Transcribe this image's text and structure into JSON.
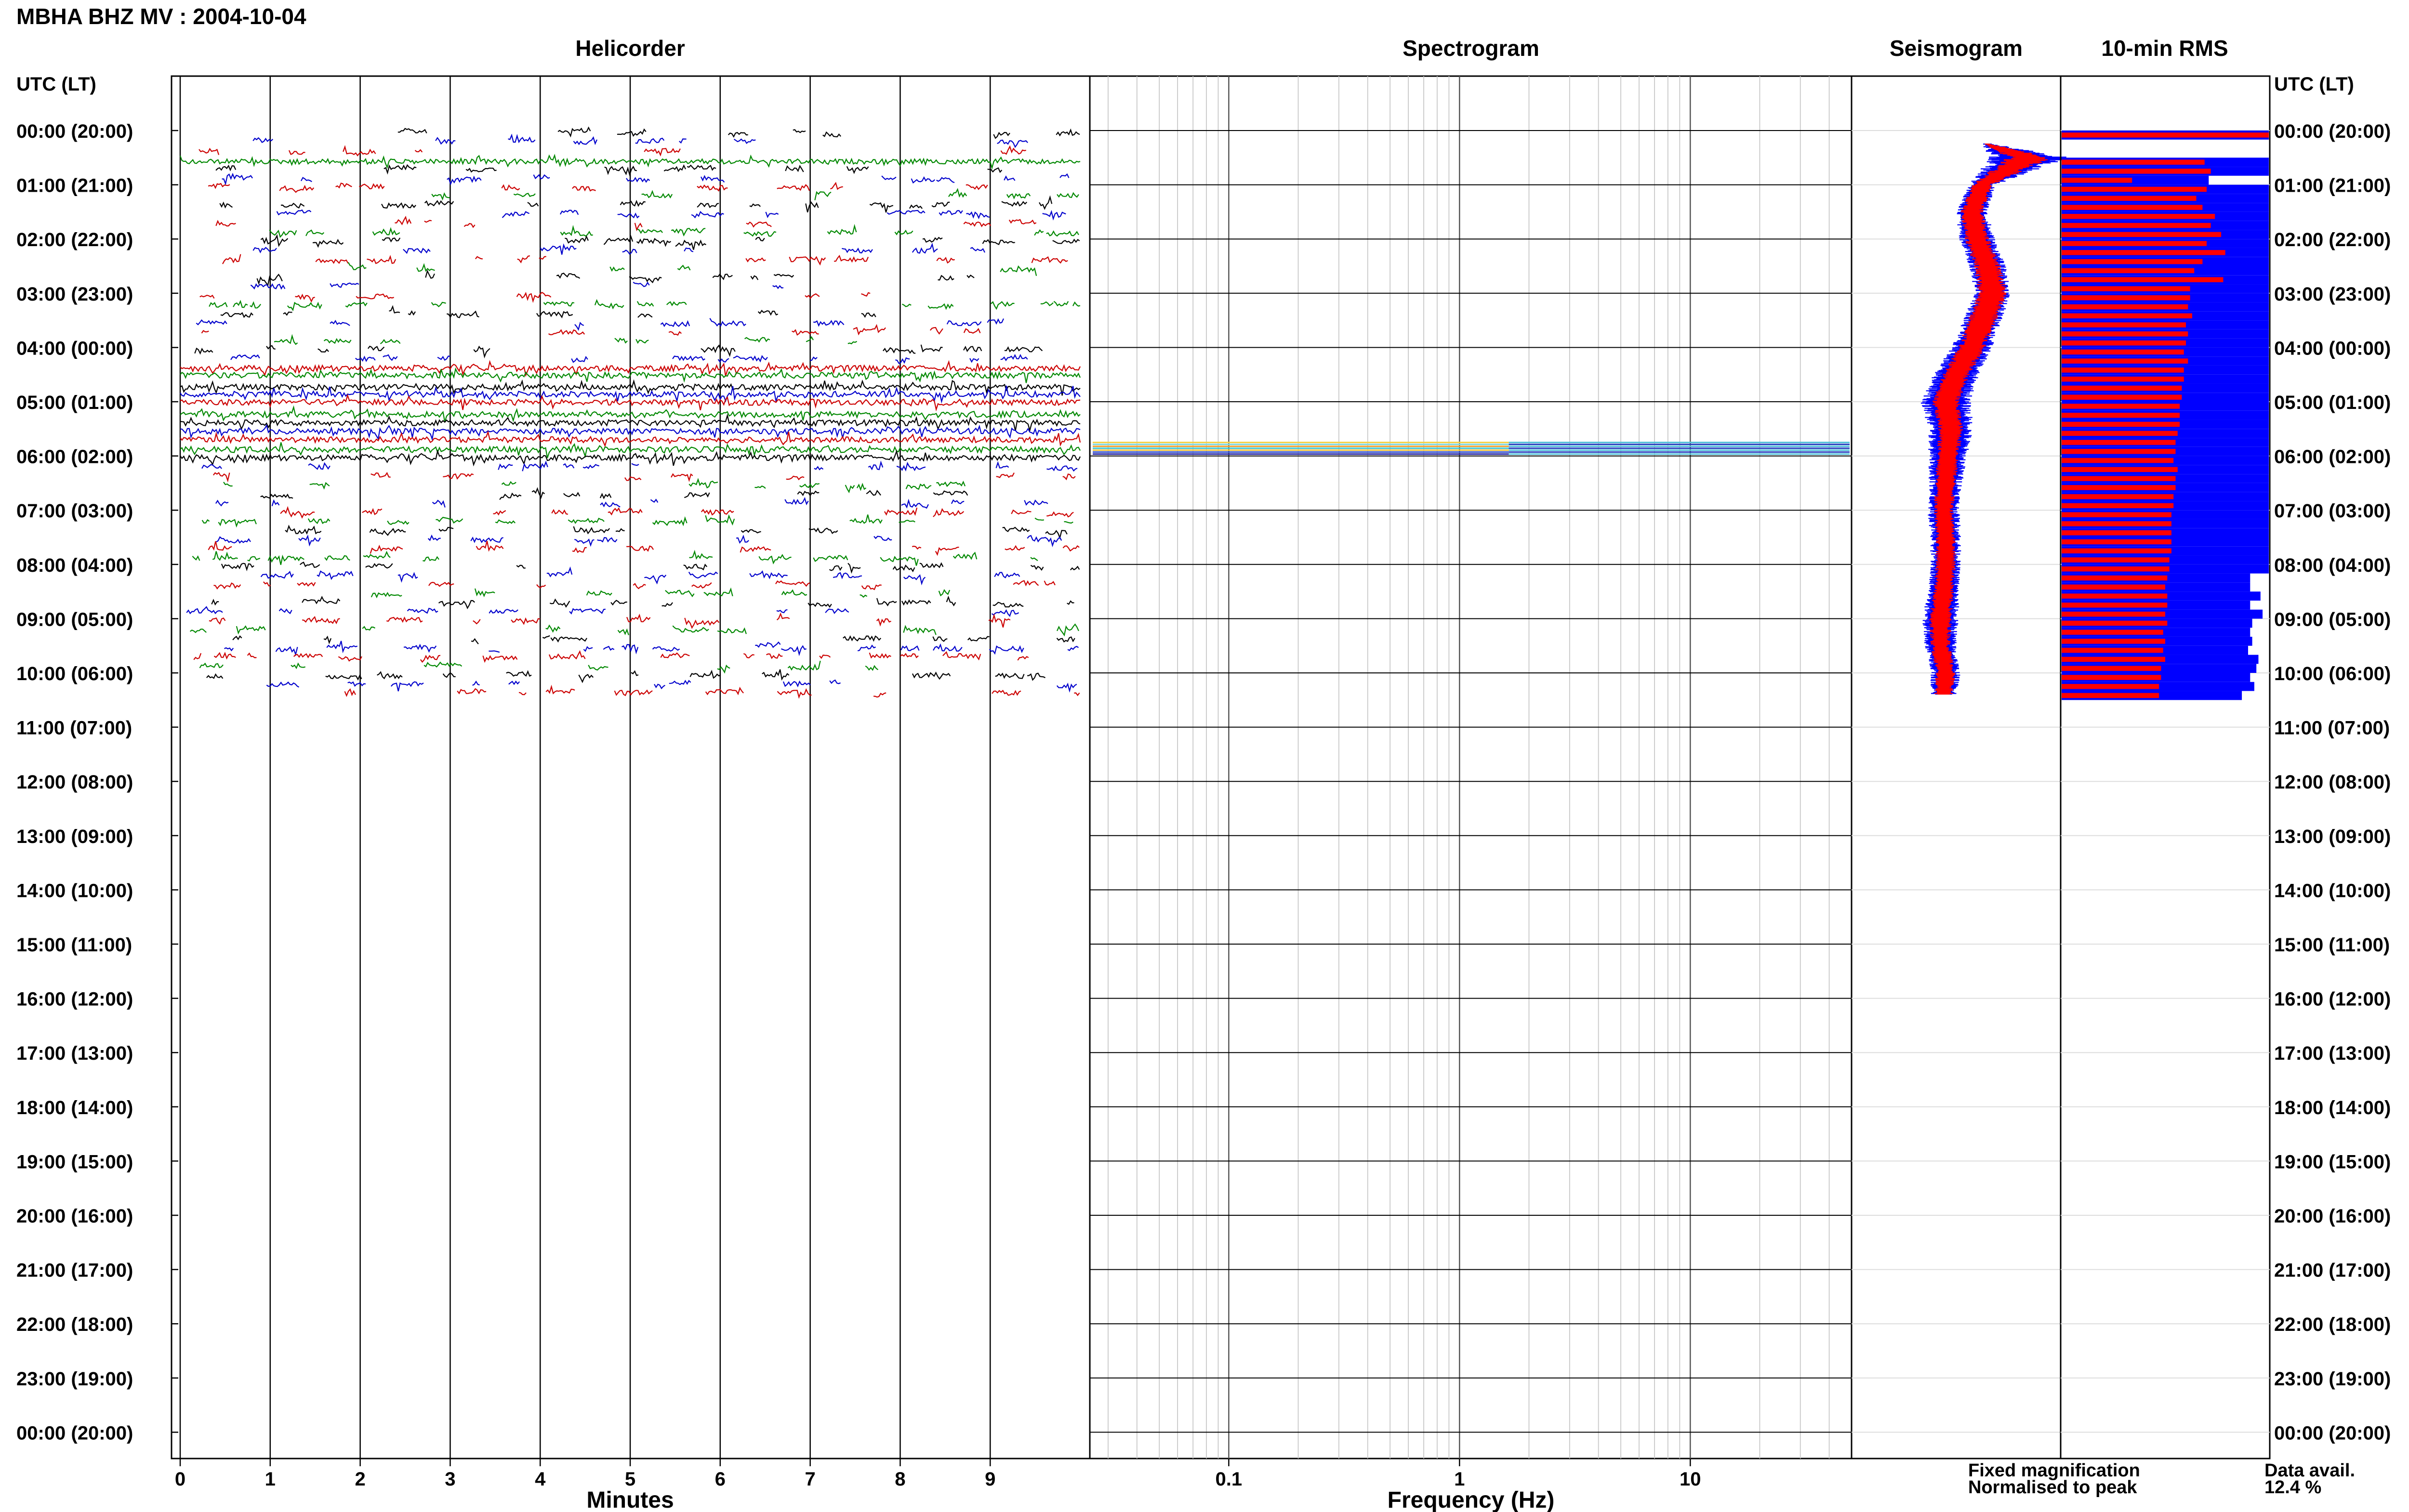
{
  "header": {
    "title": "MBHA BHZ MV : 2004-10-04"
  },
  "panels": {
    "helicorder": "Helicorder",
    "spectrogram": "Spectrogram",
    "seismogram": "Seismogram",
    "rms": "10-min RMS"
  },
  "axes": {
    "left_header": "UTC (LT)",
    "right_header": "UTC (LT)",
    "time_labels": [
      "00:00 (20:00)",
      "01:00 (21:00)",
      "02:00 (22:00)",
      "03:00 (23:00)",
      "04:00 (00:00)",
      "05:00 (01:00)",
      "06:00 (02:00)",
      "07:00 (03:00)",
      "08:00 (04:00)",
      "09:00 (05:00)",
      "10:00 (06:00)",
      "11:00 (07:00)",
      "12:00 (08:00)",
      "13:00 (09:00)",
      "14:00 (10:00)",
      "15:00 (11:00)",
      "16:00 (12:00)",
      "17:00 (13:00)",
      "18:00 (14:00)",
      "19:00 (15:00)",
      "20:00 (16:00)",
      "21:00 (17:00)",
      "22:00 (18:00)",
      "23:00 (19:00)",
      "00:00 (20:00)"
    ],
    "minutes_label": "Minutes",
    "minutes_ticks": [
      "0",
      "1",
      "2",
      "3",
      "4",
      "5",
      "6",
      "7",
      "8",
      "9"
    ],
    "frequency_label": "Frequency (Hz)",
    "frequency_ticks": [
      "0.1",
      "1",
      "10"
    ]
  },
  "legend": {
    "fixed": "Fixed magnification",
    "normalised": "Normalised to peak",
    "fixed_color": "#0000ff",
    "normalised_color": "#ff0000"
  },
  "availability": {
    "label": "Data avail.",
    "value": "12.4 %"
  },
  "colors": {
    "trace_cycle": [
      "#000000",
      "#0000cc",
      "#cc0000",
      "#008800"
    ]
  },
  "chart_data": [
    {
      "type": "line",
      "panel": "Helicorder",
      "xlabel": "Minutes",
      "xlim": [
        0,
        10
      ],
      "ylabel": "UTC (LT)",
      "ylim_hours": [
        0,
        24
      ],
      "trace_interval_minutes": 10,
      "data_end_hour": 10.5,
      "grid": true
    },
    {
      "type": "heatmap",
      "panel": "Spectrogram",
      "xlabel": "Frequency (Hz)",
      "xscale": "log",
      "xlim": [
        0.025,
        50
      ],
      "activity_hours": [
        5.75,
        6.0
      ]
    },
    {
      "type": "area",
      "panel": "Seismogram",
      "series": [
        {
          "name": "Fixed magnification",
          "color": "#0000ff",
          "hours": [
            0.25,
            0.5,
            1.0,
            1.5,
            2.0,
            2.5,
            3.0,
            3.5,
            4.0,
            4.5,
            5.0,
            5.5,
            6.0,
            6.5,
            7.0,
            7.5,
            8.0,
            8.5,
            9.0,
            9.5,
            10.0,
            10.4
          ],
          "offset": [
            0.3,
            0.7,
            0.25,
            0.15,
            0.2,
            0.3,
            0.35,
            0.25,
            0.15,
            0.0,
            -0.1,
            -0.05,
            -0.08,
            -0.1,
            -0.12,
            -0.1,
            -0.1,
            -0.12,
            -0.15,
            -0.15,
            -0.1,
            -0.12
          ],
          "amplitude": [
            0.05,
            0.35,
            0.12,
            0.14,
            0.16,
            0.16,
            0.16,
            0.17,
            0.18,
            0.2,
            0.22,
            0.2,
            0.17,
            0.15,
            0.14,
            0.14,
            0.13,
            0.14,
            0.16,
            0.14,
            0.13,
            0.12
          ]
        },
        {
          "name": "Normalised to peak",
          "color": "#ff0000",
          "hours": [
            0.25,
            0.5,
            1.0,
            1.5,
            2.0,
            2.5,
            3.0,
            3.5,
            4.0,
            4.5,
            5.0,
            5.5,
            6.0,
            6.5,
            7.0,
            7.5,
            8.0,
            8.5,
            9.0,
            9.5,
            10.0,
            10.4
          ],
          "offset": [
            0.3,
            0.7,
            0.25,
            0.15,
            0.2,
            0.3,
            0.35,
            0.25,
            0.15,
            0.0,
            -0.1,
            -0.05,
            -0.08,
            -0.1,
            -0.12,
            -0.1,
            -0.1,
            -0.12,
            -0.15,
            -0.15,
            -0.1,
            -0.12
          ],
          "amplitude": [
            0.03,
            0.2,
            0.09,
            0.1,
            0.11,
            0.12,
            0.13,
            0.13,
            0.12,
            0.12,
            0.12,
            0.11,
            0.1,
            0.09,
            0.09,
            0.09,
            0.09,
            0.09,
            0.1,
            0.09,
            0.09,
            0.08
          ]
        }
      ]
    },
    {
      "type": "bar",
      "panel": "10-min RMS",
      "orientation": "horizontal",
      "bin_minutes": 10,
      "series": [
        {
          "name": "Fixed magnification",
          "color": "#0000ff",
          "values": [
            1.0,
            0.0,
            0.0,
            1.0,
            1.0,
            0.71,
            1.0,
            1.0,
            1.0,
            1.0,
            1.0,
            1.0,
            1.0,
            1.0,
            1.0,
            1.0,
            1.0,
            1.0,
            1.0,
            1.0,
            1.0,
            1.0,
            1.0,
            1.0,
            1.0,
            1.0,
            1.0,
            1.0,
            1.0,
            1.0,
            1.0,
            1.0,
            1.0,
            1.0,
            1.0,
            1.0,
            1.0,
            1.0,
            1.0,
            1.0,
            1.0,
            1.0,
            1.0,
            1.0,
            1.0,
            1.0,
            1.0,
            1.0,
            1.0,
            0.91,
            0.91,
            0.96,
            0.91,
            0.97,
            0.92,
            0.91,
            0.92,
            0.9,
            0.95,
            0.94,
            0.91,
            0.93,
            0.87
          ]
        },
        {
          "name": "Normalised to peak",
          "color": "#ff0000",
          "values": [
            1.0,
            0.0,
            0.0,
            0.69,
            0.72,
            0.34,
            0.7,
            0.65,
            0.68,
            0.74,
            0.72,
            0.77,
            0.7,
            0.79,
            0.68,
            0.64,
            0.78,
            0.62,
            0.62,
            0.61,
            0.63,
            0.6,
            0.61,
            0.6,
            0.59,
            0.61,
            0.59,
            0.59,
            0.58,
            0.58,
            0.57,
            0.57,
            0.57,
            0.56,
            0.55,
            0.55,
            0.54,
            0.56,
            0.55,
            0.55,
            0.54,
            0.54,
            0.53,
            0.53,
            0.53,
            0.53,
            0.53,
            0.52,
            0.52,
            0.51,
            0.5,
            0.51,
            0.51,
            0.5,
            0.51,
            0.49,
            0.5,
            0.49,
            0.5,
            0.48,
            0.48,
            0.47,
            0.47
          ]
        }
      ]
    }
  ]
}
